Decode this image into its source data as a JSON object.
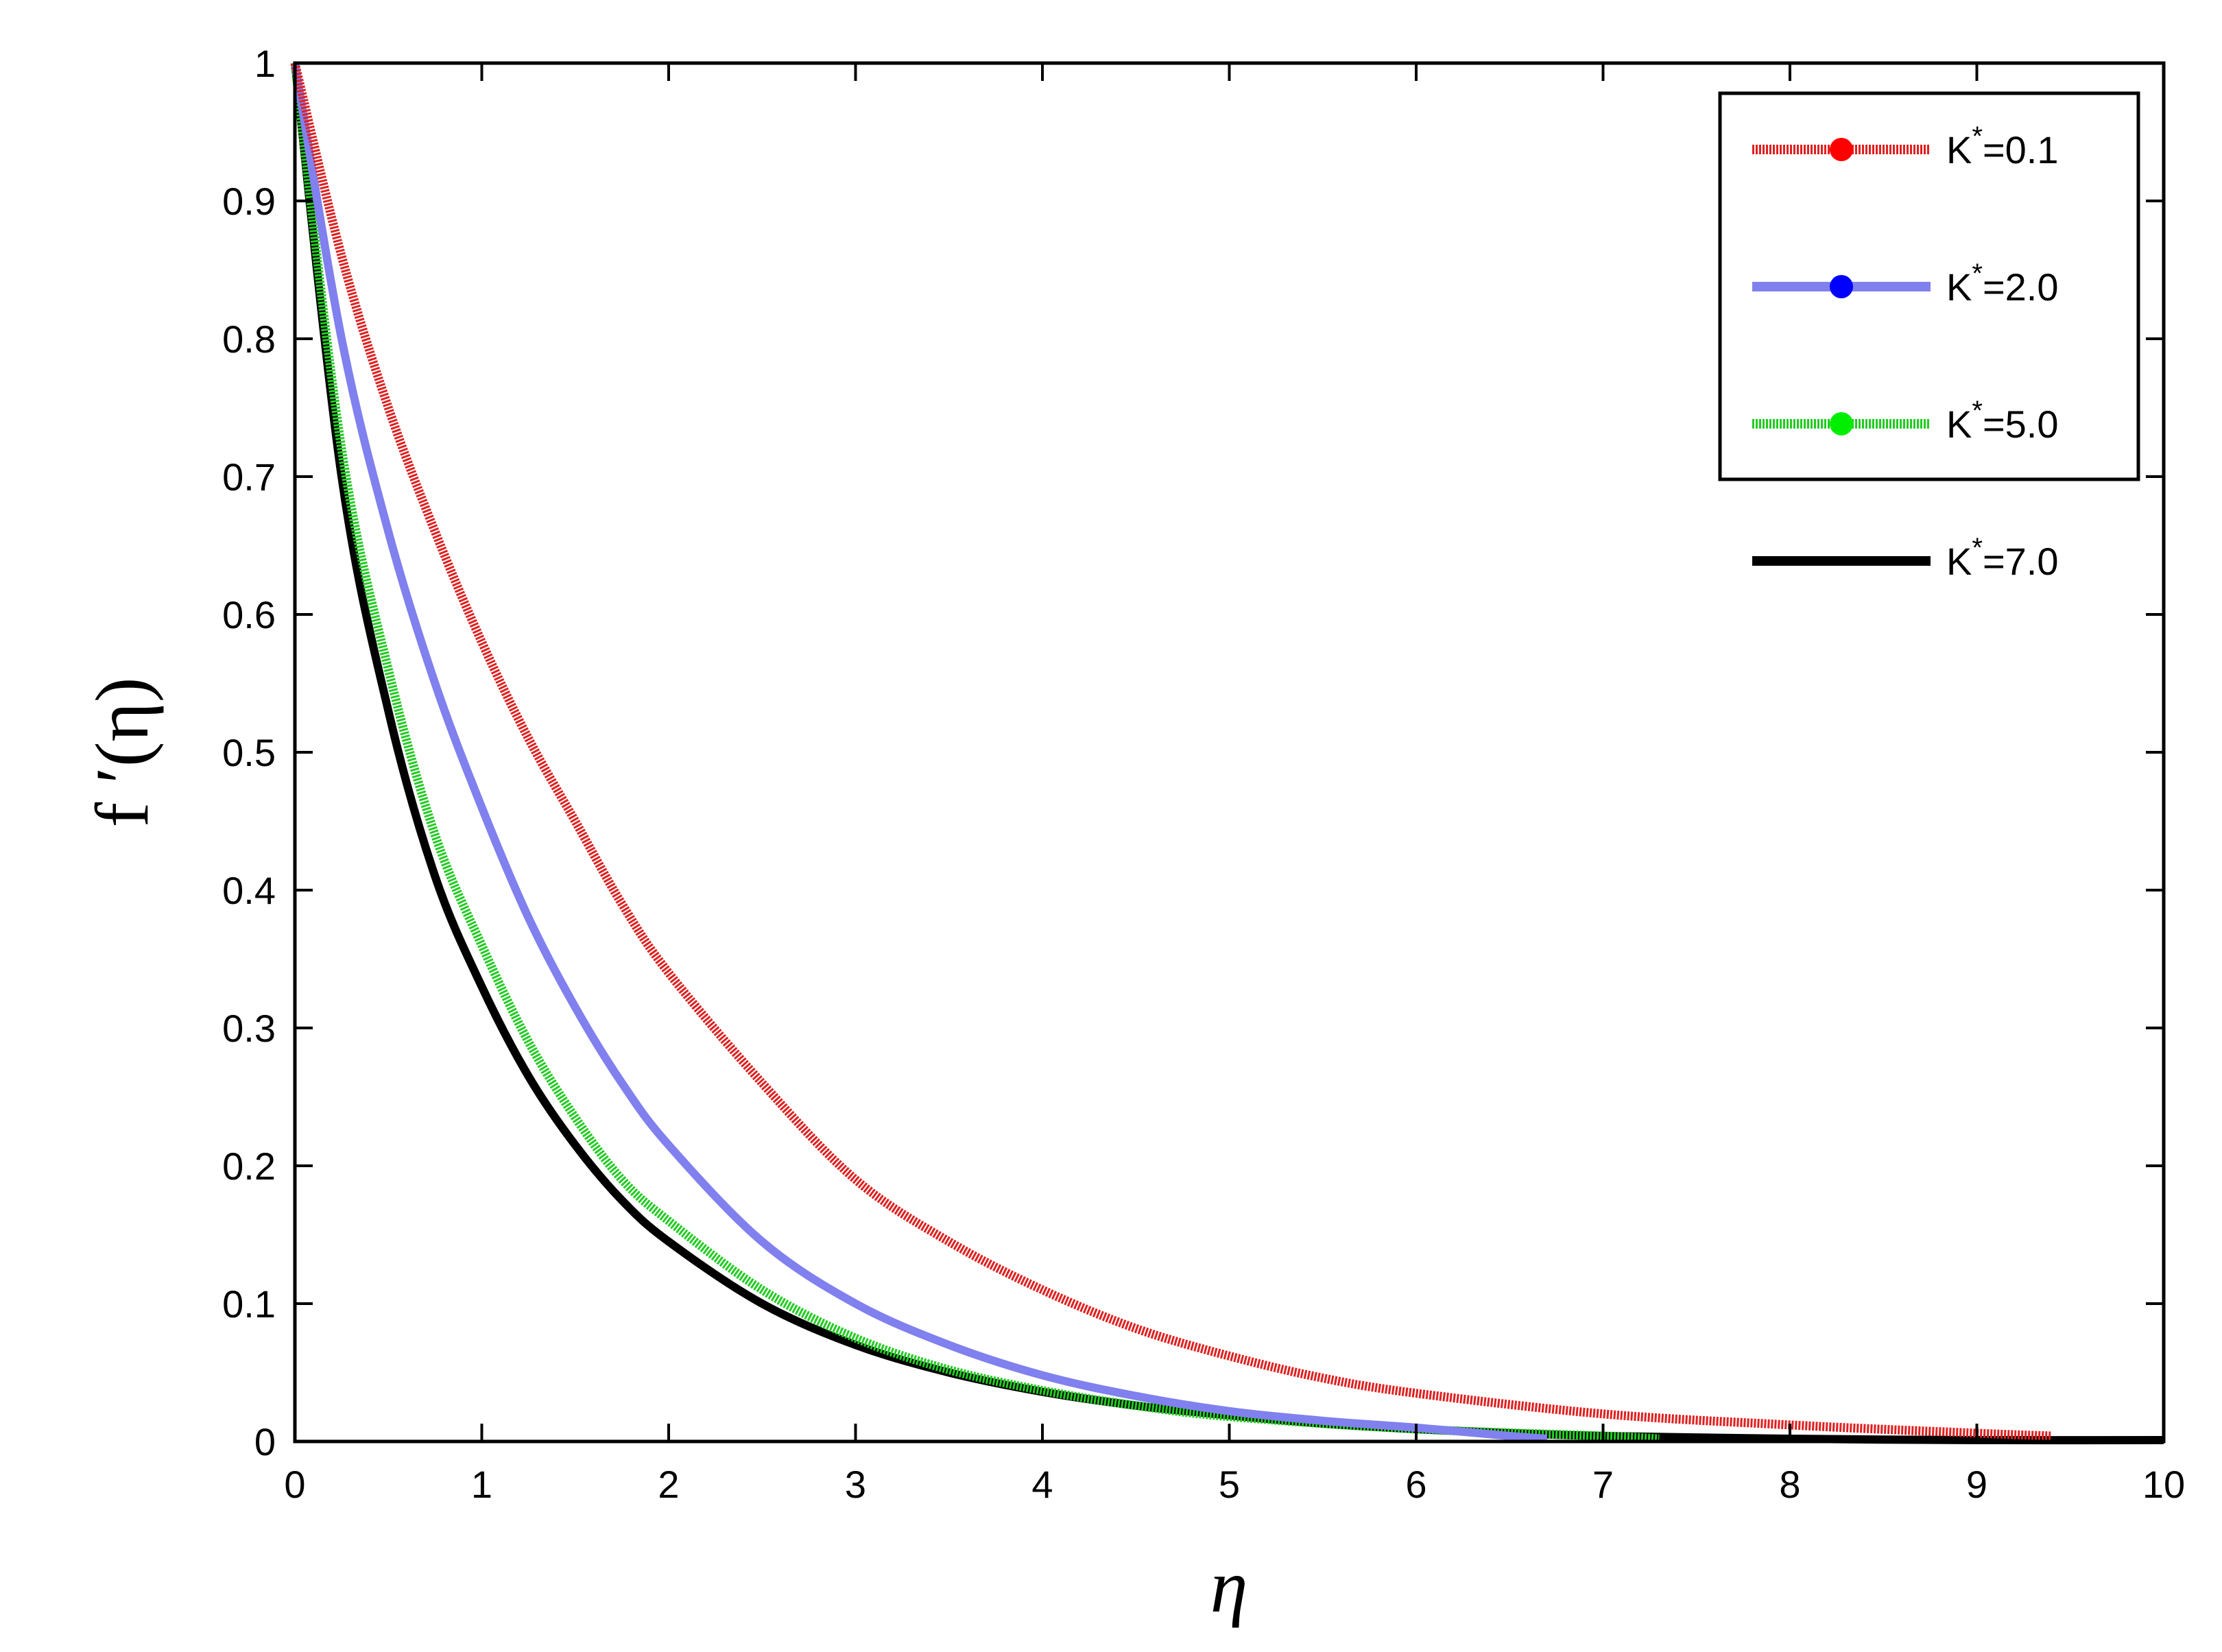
{
  "chart_data": {
    "type": "line",
    "xlabel": "η",
    "ylabel": "f ′(η)",
    "xlim": [
      0,
      10
    ],
    "ylim": [
      0,
      1
    ],
    "x_ticks": [
      "0",
      "1",
      "2",
      "3",
      "4",
      "5",
      "6",
      "7",
      "8",
      "9",
      "10"
    ],
    "y_ticks": [
      "0",
      "0.1",
      "0.2",
      "0.3",
      "0.4",
      "0.5",
      "0.6",
      "0.7",
      "0.8",
      "0.9",
      "1"
    ],
    "grid": false,
    "legend_position": "top-right",
    "series": [
      {
        "name": "K*=0.1",
        "label_base": "K",
        "label_sup": "*",
        "label_rest": "=0.1",
        "color": "#e02020",
        "marker_color": "#ff0000",
        "style": "dotted-thick",
        "x": [
          0,
          0.25,
          0.5,
          0.75,
          1.0,
          1.25,
          1.5,
          1.75,
          2.0,
          2.5,
          3.0,
          3.5,
          4.0,
          4.5,
          5.0,
          5.5,
          6.0,
          7.0,
          8.0,
          9.0,
          9.4
        ],
        "y": [
          1.0,
          0.86,
          0.75,
          0.66,
          0.58,
          0.51,
          0.45,
          0.39,
          0.34,
          0.26,
          0.19,
          0.145,
          0.11,
          0.082,
          0.062,
          0.046,
          0.035,
          0.02,
          0.012,
          0.006,
          0.004
        ]
      },
      {
        "name": "K*=2.0",
        "label_base": "K",
        "label_sup": "*",
        "label_rest": "=2.0",
        "color": "#8080ee",
        "marker_color": "#0000ff",
        "style": "solid-thick",
        "x": [
          0,
          0.25,
          0.5,
          0.75,
          1.0,
          1.25,
          1.5,
          1.75,
          2.0,
          2.5,
          3.0,
          3.5,
          4.0,
          4.5,
          5.0,
          5.5,
          6.0,
          6.5,
          6.7
        ],
        "y": [
          1.0,
          0.8,
          0.66,
          0.55,
          0.46,
          0.38,
          0.315,
          0.26,
          0.215,
          0.145,
          0.1,
          0.07,
          0.048,
          0.033,
          0.022,
          0.015,
          0.01,
          0.004,
          0.002
        ]
      },
      {
        "name": "K*=5.0",
        "label_base": "K",
        "label_sup": "*",
        "label_rest": "=5.0",
        "color": "#22cc22",
        "marker_color": "#00ee00",
        "style": "dotted-thick",
        "x": [
          0,
          0.25,
          0.5,
          0.75,
          1.0,
          1.25,
          1.5,
          1.75,
          2.0,
          2.5,
          3.0,
          3.5,
          4.0,
          4.5,
          5.0,
          6.0,
          7.0,
          7.3
        ],
        "y": [
          1.0,
          0.72,
          0.56,
          0.44,
          0.36,
          0.29,
          0.235,
          0.19,
          0.16,
          0.11,
          0.075,
          0.052,
          0.037,
          0.026,
          0.018,
          0.009,
          0.004,
          0.002
        ]
      },
      {
        "name": "K*=7.0",
        "label_base": "K",
        "label_sup": "*",
        "label_rest": "=7.0",
        "color": "#000000",
        "marker_color": "#000000",
        "style": "solid-thick",
        "x": [
          0,
          0.25,
          0.5,
          0.75,
          1.0,
          1.25,
          1.5,
          1.75,
          2.0,
          2.5,
          3.0,
          3.5,
          4.0,
          4.5,
          5.0,
          5.5,
          6.0,
          6.5,
          7.0,
          8.0,
          9.0,
          10.0
        ],
        "y": [
          1.0,
          0.7,
          0.53,
          0.41,
          0.33,
          0.265,
          0.215,
          0.175,
          0.145,
          0.1,
          0.07,
          0.05,
          0.036,
          0.026,
          0.019,
          0.013,
          0.009,
          0.006,
          0.004,
          0.002,
          0.001,
          0.001
        ]
      }
    ]
  }
}
